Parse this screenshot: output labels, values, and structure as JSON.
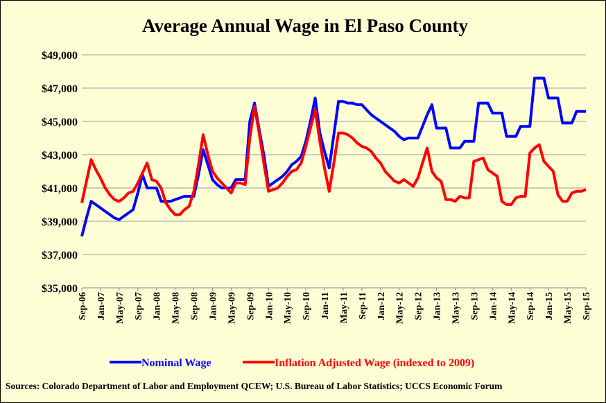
{
  "chart_data": {
    "type": "line",
    "title": "Average  Annual  Wage in El Paso County",
    "source": "Sources: Colorado Department of Labor and Employment QCEW; U.S. Bureau of Labor Statistics; UCCS Economic Forum",
    "categories": [
      "Sep-06",
      null,
      null,
      null,
      "Jan-07",
      null,
      null,
      null,
      "May-07",
      null,
      null,
      null,
      "Sep-07",
      null,
      null,
      null,
      "Jan-08",
      null,
      null,
      null,
      "May-08",
      null,
      null,
      null,
      "Sep-08",
      null,
      null,
      null,
      "Jan-09",
      null,
      null,
      null,
      "May-09",
      null,
      null,
      null,
      "Sep-09",
      null,
      null,
      null,
      "Jan-10",
      null,
      null,
      null,
      "May-10",
      null,
      null,
      null,
      "Sep-10",
      null,
      null,
      null,
      "Jan-11",
      null,
      null,
      null,
      "May-11",
      null,
      null,
      null,
      "Sep-11",
      null,
      null,
      null,
      "Jan-12",
      null,
      null,
      null,
      "May-12",
      null,
      null,
      null,
      "Sep-12",
      null,
      null,
      null,
      "Jan-13",
      null,
      null,
      null,
      "May-13",
      null,
      null,
      null,
      "Sep-13",
      null,
      null,
      null,
      "Jan-14",
      null,
      null,
      null,
      "May-14",
      null,
      null,
      null,
      "Sep-14",
      null,
      null,
      null,
      "Jan-15",
      null,
      null,
      null,
      "May-15",
      null,
      null,
      null,
      "Sep-15"
    ],
    "series": [
      {
        "name": "Nominal Wage",
        "color": "#0000ff",
        "values": [
          38100,
          39200,
          40200,
          40000,
          39800,
          39600,
          39400,
          39200,
          39100,
          39300,
          39500,
          39700,
          40700,
          41800,
          41000,
          41000,
          41000,
          40200,
          40200,
          40200,
          40300,
          40400,
          40500,
          40500,
          40500,
          41800,
          43300,
          42400,
          41500,
          41200,
          41000,
          41000,
          41000,
          41500,
          41500,
          41500,
          45000,
          46100,
          44500,
          43000,
          41100,
          41300,
          41500,
          41700,
          42000,
          42400,
          42600,
          42900,
          43800,
          45000,
          46400,
          44300,
          43200,
          42200,
          44200,
          46200,
          46200,
          46100,
          46100,
          46000,
          46000,
          45700,
          45400,
          45200,
          45000,
          44800,
          44600,
          44400,
          44100,
          43900,
          44000,
          44000,
          44000,
          44700,
          45400,
          46000,
          44600,
          44600,
          44600,
          43400,
          43400,
          43400,
          43800,
          43800,
          43800,
          46100,
          46100,
          46100,
          45500,
          45500,
          45500,
          44100,
          44100,
          44100,
          44700,
          44700,
          44700,
          47600,
          47600,
          47600,
          46400,
          46400,
          46400,
          44900,
          44900,
          44900,
          45600,
          45600,
          45600
        ]
      },
      {
        "name": "Inflation Adjusted Wage (indexed to 2009)",
        "color": "#ff0000",
        "values": [
          40100,
          41400,
          42700,
          42100,
          41600,
          41000,
          40600,
          40300,
          40200,
          40400,
          40700,
          40800,
          41300,
          41900,
          42500,
          41500,
          41400,
          41000,
          40100,
          39700,
          39400,
          39400,
          39700,
          39900,
          40800,
          42400,
          44200,
          43000,
          42000,
          41600,
          41300,
          41000,
          40700,
          41300,
          41300,
          41200,
          44000,
          45900,
          44300,
          42500,
          40800,
          40900,
          41000,
          41300,
          41700,
          42000,
          42100,
          42500,
          43500,
          44600,
          45700,
          43800,
          42200,
          40800,
          42500,
          44300,
          44300,
          44200,
          44000,
          43700,
          43500,
          43400,
          43200,
          42800,
          42500,
          42000,
          41700,
          41400,
          41300,
          41500,
          41300,
          41100,
          41600,
          42500,
          43400,
          42000,
          41600,
          41400,
          40300,
          40300,
          40200,
          40500,
          40400,
          40400,
          42600,
          42700,
          42800,
          42100,
          41900,
          41700,
          40200,
          40000,
          40000,
          40400,
          40500,
          40500,
          43100,
          43400,
          43600,
          42600,
          42300,
          42000,
          40600,
          40200,
          40200,
          40700,
          40800,
          40800,
          40900
        ]
      }
    ],
    "ylim": [
      35000,
      49000
    ],
    "yticks": [
      {
        "value": 35000,
        "label": "$35,000"
      },
      {
        "value": 37000,
        "label": "$37,000"
      },
      {
        "value": 39000,
        "label": "$39,000"
      },
      {
        "value": 41000,
        "label": "$41,000"
      },
      {
        "value": 43000,
        "label": "$43,000"
      },
      {
        "value": 45000,
        "label": "$45,000"
      },
      {
        "value": 47000,
        "label": "$47,000"
      },
      {
        "value": 49000,
        "label": "$49,000"
      }
    ],
    "grid": true
  }
}
